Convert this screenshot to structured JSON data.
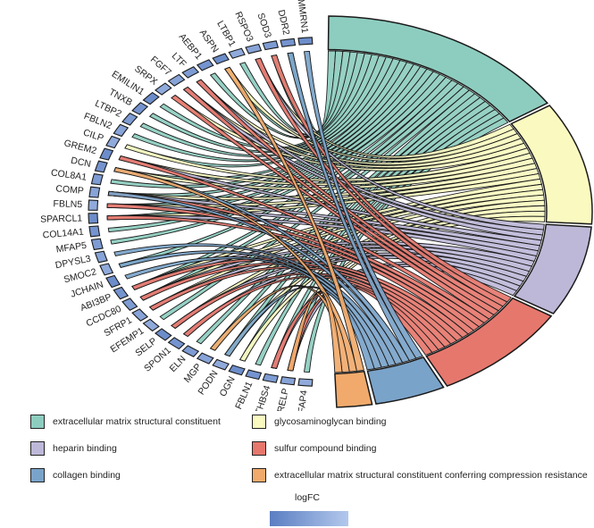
{
  "chart_data": {
    "type": "chord",
    "genes": [
      "MMRN1",
      "DDR2",
      "SOD3",
      "RSPO3",
      "LTBP1",
      "ASPN",
      "AEBP1",
      "LTF",
      "FGF7",
      "SRPX",
      "EMILIN1",
      "TNXB",
      "LTBP2",
      "FBLN2",
      "CILP",
      "GREM2",
      "DCN",
      "COL8A1",
      "COMP",
      "FBLN5",
      "SPARCL1",
      "COL14A1",
      "MFAP5",
      "DPYSL3",
      "SMOC2",
      "JCHAIN",
      "ABI3BP",
      "CCDC80",
      "SFRP1",
      "EFEMP1",
      "SELP",
      "SPON1",
      "ELN",
      "MGP",
      "PODN",
      "OGN",
      "FBLN1",
      "THBS4",
      "PRELP",
      "MFAP4"
    ],
    "terms": [
      {
        "name": "extracellular matrix structural constituent",
        "color": "#8dcdbf",
        "genes": [
          "DDR2",
          "SOD3",
          "LTBP1",
          "ASPN",
          "AEBP1",
          "EMILIN1",
          "TNXB",
          "LTBP2",
          "FBLN2",
          "CILP",
          "DCN",
          "COL8A1",
          "COMP",
          "FBLN5",
          "SPARCL1",
          "COL14A1",
          "MFAP5",
          "SMOC2",
          "ABI3BP",
          "CCDC80",
          "EFEMP1",
          "ELN",
          "MGP",
          "PODN",
          "OGN",
          "FBLN1",
          "THBS4",
          "PRELP",
          "MFAP4"
        ]
      },
      {
        "name": "glycosaminoglycan binding",
        "color": "#fafac0",
        "genes": [
          "RSPO3",
          "ASPN",
          "LTF",
          "FGF7",
          "SRPX",
          "CILP",
          "GREM2",
          "DCN",
          "COMP",
          "FBLN5",
          "SPARCL1",
          "ABI3BP",
          "CCDC80",
          "SFRP1",
          "SELP",
          "PODN",
          "OGN",
          "THBS4",
          "PRELP"
        ]
      },
      {
        "name": "heparin binding",
        "color": "#bdb8d8",
        "genes": [
          "RSPO3",
          "LTF",
          "FGF7",
          "GREM2",
          "COMP",
          "FBLN5",
          "SPARCL1",
          "ABI3BP",
          "CCDC80",
          "SFRP1",
          "SELP",
          "SPON1",
          "THBS4",
          "PRELP"
        ]
      },
      {
        "name": "sulfur compound binding",
        "color": "#e6776d",
        "genes": [
          "SOD3",
          "RSPO3",
          "LTF",
          "FGF7",
          "SRPX",
          "GREM2",
          "COMP",
          "FBLN5",
          "SPARCL1",
          "ABI3BP",
          "CCDC80",
          "SFRP1",
          "SELP",
          "SPON1",
          "THBS4",
          "PRELP"
        ]
      },
      {
        "name": "collagen binding",
        "color": "#7aa3c9",
        "genes": [
          "MMRN1",
          "DDR2",
          "DCN",
          "COMP",
          "DPYSL3",
          "SMOC2",
          "JCHAIN",
          "PODN"
        ]
      },
      {
        "name": "extracellular matrix structural constituent conferring compression resistance",
        "color": "#f1aa6b",
        "genes": [
          "ASPN",
          "DCN",
          "MGP",
          "PRELP"
        ]
      }
    ],
    "legend": {
      "placement": "bottom",
      "columns": 2
    },
    "color_scale": {
      "title": "logFC",
      "colors": [
        "#5a7ec2",
        "#b3c8ec"
      ]
    }
  }
}
